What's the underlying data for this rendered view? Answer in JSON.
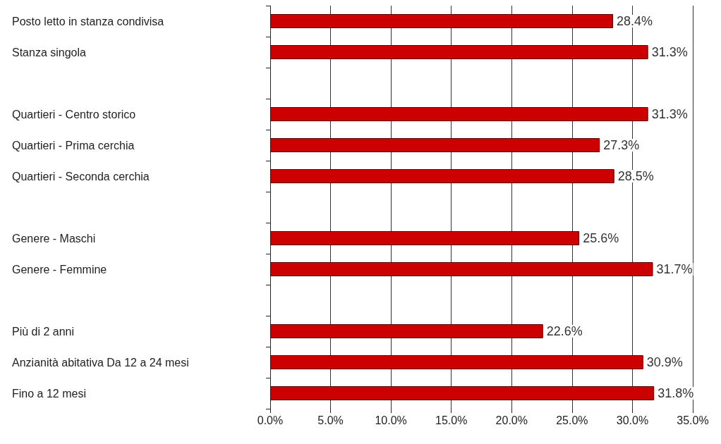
{
  "chart_data": {
    "type": "bar",
    "orientation": "horizontal",
    "categories": [
      "Posto letto in stanza condivisa",
      "Stanza singola",
      null,
      "Quartieri - Centro storico",
      "Quartieri - Prima cerchia",
      "Quartieri - Seconda cerchia",
      null,
      "Genere - Maschi",
      "Genere - Femmine",
      null,
      "Più di 2 anni",
      "Anzianità abitativa Da 12 a 24 mesi",
      "Fino a 12 mesi"
    ],
    "values": [
      28.4,
      31.3,
      null,
      31.3,
      27.3,
      28.5,
      null,
      25.6,
      31.7,
      null,
      22.6,
      30.9,
      31.8
    ],
    "value_labels": [
      "28.4%",
      "31.3%",
      null,
      "31.3%",
      "27.3%",
      "28.5%",
      null,
      "25.6%",
      "31.7%",
      null,
      "22.6%",
      "30.9%",
      "31.8%"
    ],
    "color": "#cc0000",
    "xlim": [
      0,
      35
    ],
    "xticks": [
      {
        "value": 0,
        "label": "0.0%"
      },
      {
        "value": 5,
        "label": "5.0%"
      },
      {
        "value": 10,
        "label": "10.0%"
      },
      {
        "value": 15,
        "label": "15.0%"
      },
      {
        "value": 20,
        "label": "20.0%"
      },
      {
        "value": 25,
        "label": "25.0%"
      },
      {
        "value": 30,
        "label": "30.0%"
      },
      {
        "value": 35,
        "label": "35.0%"
      }
    ],
    "grid": "x"
  }
}
